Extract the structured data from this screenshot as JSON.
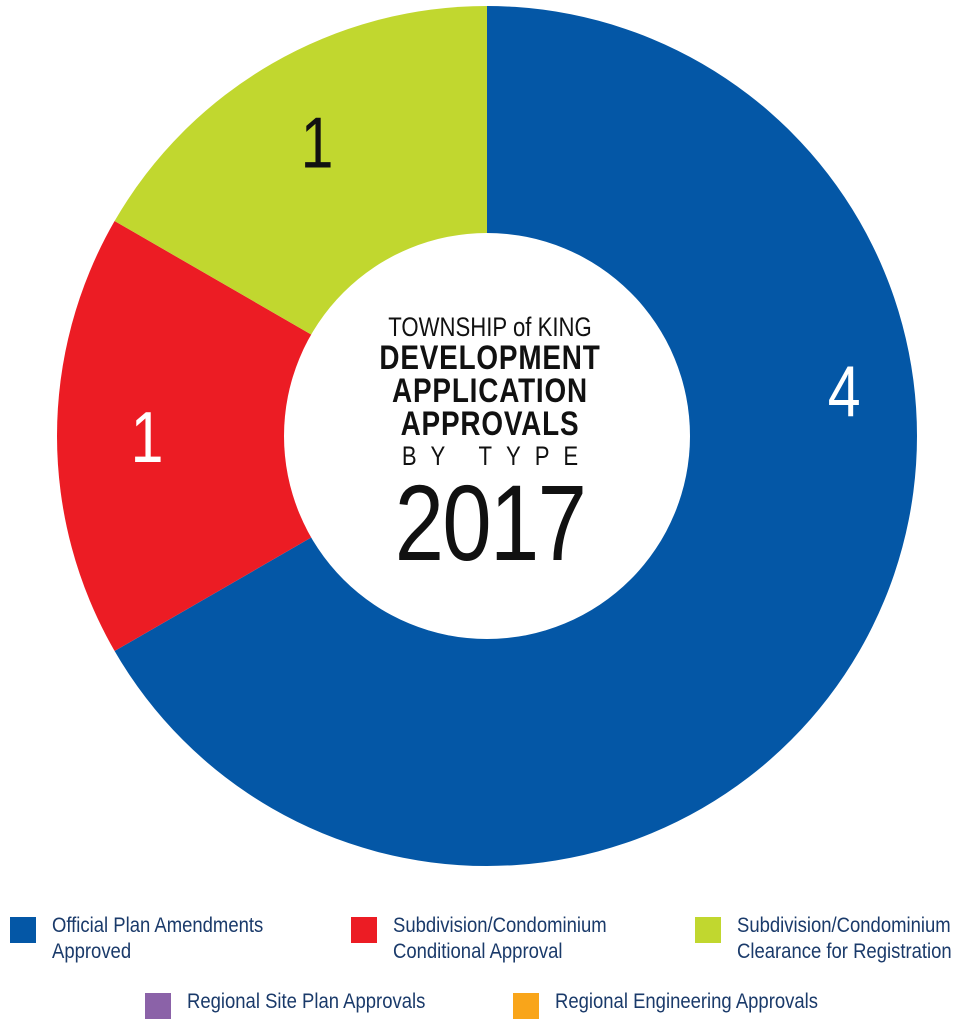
{
  "chart_data": {
    "type": "pie",
    "title_lines": [
      "TOWNSHIP of KING",
      "DEVELOPMENT",
      "APPLICATION",
      "APPROVALS",
      "BY TYPE",
      "2017"
    ],
    "series": [
      {
        "name": "Official Plan Amendments Approved",
        "value": 4,
        "color": "#0457a6"
      },
      {
        "name": "Subdivision/Condominium Conditional Approval",
        "value": 1,
        "color": "#ec1c24"
      },
      {
        "name": "Subdivision/Condominium Clearance for Registration",
        "value": 1,
        "color": "#c1d72f"
      },
      {
        "name": "Regional Site Plan Approvals",
        "value": 0,
        "color": "#8b62a8"
      },
      {
        "name": "Regional Engineering Approvals",
        "value": 0,
        "color": "#f9a51a"
      }
    ],
    "slice_labels": [
      "4",
      "1",
      "1"
    ],
    "legend_position": "bottom"
  },
  "legend": {
    "items": [
      {
        "line1": "Official Plan Amendments",
        "line2": "Approved"
      },
      {
        "line1": "Subdivision/Condominium",
        "line2": "Conditional Approval"
      },
      {
        "line1": "Subdivision/Condominium",
        "line2": "Clearance for Registration"
      },
      {
        "line1": "Regional Site Plan Approvals",
        "line2": ""
      },
      {
        "line1": "Regional Engineering Approvals",
        "line2": ""
      }
    ]
  }
}
